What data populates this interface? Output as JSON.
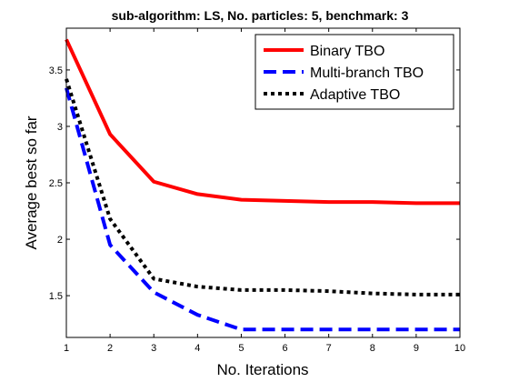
{
  "chart_data": {
    "type": "line",
    "title": {
      "prefix": "sub-algorithm: ",
      "algorithm": "LS",
      "middle": ", No. particles: 5, benchmark: 3"
    },
    "xlabel": "No. Iterations",
    "ylabel": "Average best so far",
    "xlim": [
      1,
      10
    ],
    "ylim": [
      1.13,
      3.87
    ],
    "x_ticks": [
      "1",
      "2",
      "3",
      "4",
      "5",
      "6",
      "7",
      "8",
      "9",
      "10"
    ],
    "y_ticks": [
      1.5,
      2,
      2.5,
      3,
      3.5
    ],
    "y_tick_labels": [
      "1.5",
      "2",
      "2.5",
      "3",
      "3.5"
    ],
    "grid": false,
    "legend_position": "top-right",
    "x": [
      1,
      2,
      3,
      4,
      5,
      6,
      7,
      8,
      9,
      10
    ],
    "series": [
      {
        "name": "Binary TBO",
        "color": "#ff0000",
        "dash": "solid",
        "values": [
          3.77,
          2.93,
          2.51,
          2.4,
          2.35,
          2.34,
          2.33,
          2.33,
          2.32,
          2.32
        ]
      },
      {
        "name": "Multi-branch TBO",
        "color": "#0000ff",
        "dash": "dashed",
        "values": [
          3.34,
          1.95,
          1.53,
          1.33,
          1.2,
          1.2,
          1.2,
          1.2,
          1.2,
          1.2
        ]
      },
      {
        "name": "Adaptive TBO",
        "color": "#000000",
        "dash": "dotted",
        "values": [
          3.42,
          2.18,
          1.65,
          1.58,
          1.55,
          1.55,
          1.54,
          1.52,
          1.51,
          1.51
        ]
      }
    ]
  }
}
